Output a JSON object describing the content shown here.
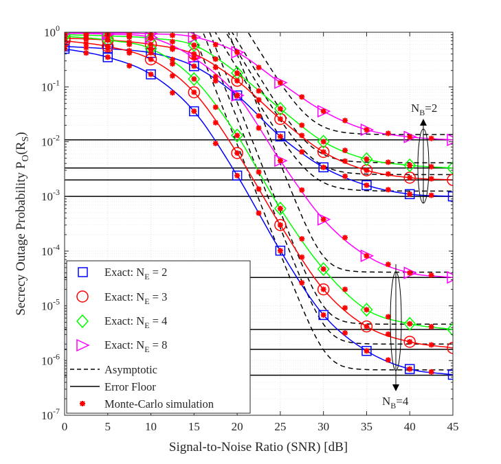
{
  "chart_data": {
    "type": "line",
    "xlabel": "Signal-to-Noise Ratio (SNR) [dB]",
    "ylabel": "Secrecy Outage Probability P",
    "ylabel_sub": "O",
    "ylabel_arg_open": "(R",
    "ylabel_arg_sub": "S",
    "ylabel_arg_close": ")",
    "y_scale": "log",
    "xlim": [
      0,
      45
    ],
    "ylim": [
      1e-07,
      1
    ],
    "grid": true,
    "legend_position": "bottom-left",
    "x_ticks": [
      {
        "value": 0,
        "label": "0"
      },
      {
        "value": 5,
        "label": "5"
      },
      {
        "value": 10,
        "label": "10"
      },
      {
        "value": 15,
        "label": "15"
      },
      {
        "value": 20,
        "label": "20"
      },
      {
        "value": 25,
        "label": "25"
      },
      {
        "value": 30,
        "label": "30"
      },
      {
        "value": 35,
        "label": "35"
      },
      {
        "value": 40,
        "label": "40"
      },
      {
        "value": 45,
        "label": "45"
      }
    ],
    "y_ticks": [
      {
        "value": 1,
        "base": "10",
        "exp": "0"
      },
      {
        "value": 0.1,
        "base": "10",
        "exp": "-1"
      },
      {
        "value": 0.01,
        "base": "10",
        "exp": "-2"
      },
      {
        "value": 0.001,
        "base": "10",
        "exp": "-3"
      },
      {
        "value": 0.0001,
        "base": "10",
        "exp": "-4"
      },
      {
        "value": 1e-05,
        "base": "10",
        "exp": "-5"
      },
      {
        "value": 1e-06,
        "base": "10",
        "exp": "-6"
      },
      {
        "value": 1e-07,
        "base": "10",
        "exp": "-7"
      }
    ],
    "series": [
      {
        "key": "ne2",
        "marker": "square",
        "color": "#0000ff",
        "legend_main": "Exact: N",
        "legend_sub": "E",
        "legend_tail": " = 2",
        "nb2": {
          "x": [
            0,
            5,
            10,
            15,
            20,
            25,
            30,
            35,
            40,
            45
          ],
          "y": [
            0.5,
            0.35,
            0.17,
            0.036,
            0.0024,
            0.000102,
            6.8e-06,
            1.5e-06,
            7e-07,
            5.5e-07
          ]
        }
      },
      {
        "key": "ne3",
        "marker": "circle",
        "color": "#ff0000",
        "legend_main": "Exact: N",
        "legend_sub": "E",
        "legend_tail": " = 3",
        "nb2": {
          "x": [
            0,
            5,
            10,
            15,
            20,
            25,
            30,
            35,
            40,
            45
          ],
          "y": [
            0.7,
            0.55,
            0.32,
            0.08,
            0.0062,
            0.0003,
            2e-05,
            4.2e-06,
            2.2e-06,
            1.7e-06
          ]
        }
      },
      {
        "key": "ne4",
        "marker": "diamond",
        "color": "#00ff00",
        "legend_main": "Exact: N",
        "legend_sub": "E",
        "legend_tail": " = 4",
        "nb2": {
          "x": [
            0,
            5,
            10,
            15,
            20,
            25,
            30,
            35,
            40,
            45
          ],
          "y": [
            0.85,
            0.72,
            0.5,
            0.14,
            0.013,
            0.0006,
            4.7e-05,
            8.5e-06,
            4.7e-06,
            3.7e-06
          ]
        }
      },
      {
        "key": "ne8",
        "marker": "triangle-right",
        "color": "#ff00ff",
        "legend_main": "Exact: N",
        "legend_sub": "E",
        "legend_tail": " = 8",
        "nb2": {
          "x": [
            0,
            5,
            10,
            15,
            20,
            25,
            30,
            35,
            40,
            45
          ],
          "y": [
            0.96,
            0.92,
            0.8,
            0.34,
            0.07,
            0.0045,
            0.00038,
            8.2e-05,
            4e-05,
            3.3e-05
          ]
        }
      }
    ],
    "series_nb2": [
      {
        "key": "ne2",
        "x": [
          0,
          5,
          10,
          15,
          20,
          25,
          30,
          35,
          40,
          45
        ],
        "y": [
          0.55,
          0.5,
          0.42,
          0.24,
          0.07,
          0.0125,
          0.0034,
          0.0016,
          0.0011,
          0.001
        ]
      },
      {
        "key": "ne3",
        "x": [
          0,
          5,
          10,
          15,
          20,
          25,
          30,
          35,
          40,
          45
        ],
        "y": [
          0.78,
          0.72,
          0.6,
          0.4,
          0.13,
          0.026,
          0.0065,
          0.003,
          0.0022,
          0.002
        ]
      },
      {
        "key": "ne4",
        "x": [
          0,
          5,
          10,
          15,
          20,
          25,
          30,
          35,
          40,
          45
        ],
        "y": [
          0.9,
          0.86,
          0.78,
          0.58,
          0.18,
          0.04,
          0.01,
          0.0048,
          0.0037,
          0.0033
        ]
      },
      {
        "key": "ne8",
        "x": [
          0,
          5,
          10,
          15,
          20,
          25,
          30,
          35,
          40,
          45
        ],
        "y": [
          0.98,
          0.97,
          0.94,
          0.82,
          0.43,
          0.12,
          0.036,
          0.0165,
          0.0122,
          0.0108
        ]
      }
    ],
    "error_floors": [
      0.0108,
      0.0033,
      0.002,
      0.001,
      3.3e-05,
      3.7e-06,
      1.6e-06,
      5.4e-07
    ],
    "legend": {
      "asymptotic": "Asymptotic",
      "floor": "Error Floor",
      "monte_carlo": "Monte-Carlo simulation"
    },
    "annotations": {
      "nb2_main": "N",
      "nb2_sub": "B",
      "nb2_tail": "=2",
      "nb4_main": "N",
      "nb4_sub": "B",
      "nb4_tail": "=4"
    }
  }
}
